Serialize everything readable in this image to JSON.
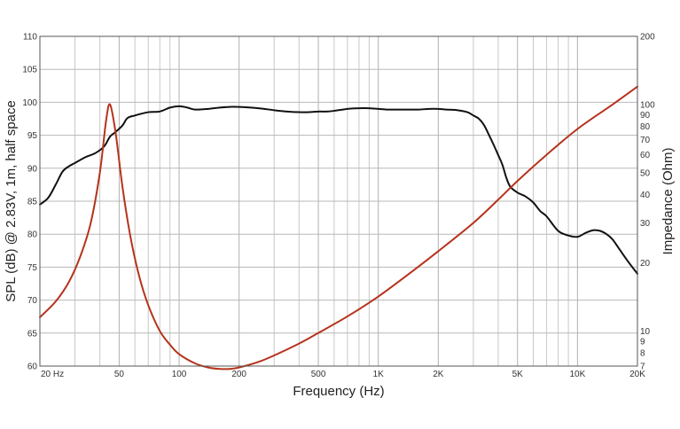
{
  "chart_data": {
    "type": "line",
    "xlabel": "Frequency (Hz)",
    "ylabel_left": "SPL (dB) @ 2.83V, 1m, half space",
    "ylabel_right": "Impedance (Ohm)",
    "x_scale": "log",
    "xlim": [
      20,
      20000
    ],
    "ylim_left": [
      60,
      110
    ],
    "ylim_right": [
      7,
      200
    ],
    "y_right_scale": "log",
    "grid": true,
    "x_ticks": [
      {
        "value": 20,
        "label": "20 Hz"
      },
      {
        "value": 50,
        "label": "50"
      },
      {
        "value": 100,
        "label": "100"
      },
      {
        "value": 200,
        "label": "200"
      },
      {
        "value": 500,
        "label": "500"
      },
      {
        "value": 1000,
        "label": "1K"
      },
      {
        "value": 2000,
        "label": "2K"
      },
      {
        "value": 5000,
        "label": "5K"
      },
      {
        "value": 10000,
        "label": "10K"
      },
      {
        "value": 20000,
        "label": "20K"
      }
    ],
    "y_left_ticks": [
      "60",
      "65",
      "70",
      "75",
      "80",
      "85",
      "90",
      "95",
      "100",
      "105",
      "110"
    ],
    "y_right_ticks": [
      {
        "value": 7,
        "label": "7"
      },
      {
        "value": 8,
        "label": "8"
      },
      {
        "value": 9,
        "label": "9"
      },
      {
        "value": 10,
        "label": "10"
      },
      {
        "value": 20,
        "label": "20"
      },
      {
        "value": 30,
        "label": "30"
      },
      {
        "value": 40,
        "label": "40"
      },
      {
        "value": 50,
        "label": "50"
      },
      {
        "value": 60,
        "label": "60"
      },
      {
        "value": 70,
        "label": "70"
      },
      {
        "value": 80,
        "label": "80"
      },
      {
        "value": 90,
        "label": "90"
      },
      {
        "value": 100,
        "label": "100"
      },
      {
        "value": 200,
        "label": "200"
      }
    ],
    "series": [
      {
        "axis": "left",
        "color": "#111111",
        "x": [
          20,
          22,
          24,
          26,
          28,
          30,
          34,
          38,
          42,
          45,
          48,
          52,
          55,
          60,
          70,
          80,
          90,
          100,
          110,
          120,
          140,
          160,
          180,
          200,
          250,
          300,
          350,
          400,
          450,
          500,
          550,
          600,
          700,
          800,
          900,
          1000,
          1100,
          1200,
          1400,
          1600,
          1800,
          2000,
          2200,
          2500,
          2800,
          3000,
          3200,
          3400,
          3600,
          3800,
          4000,
          4200,
          4400,
          4600,
          5000,
          5500,
          6000,
          6500,
          7000,
          8000,
          9000,
          10000,
          11000,
          12000,
          13000,
          14000,
          15000,
          16000,
          18000,
          20000
        ],
        "y": [
          84.5,
          85.5,
          87.5,
          89.5,
          90.3,
          90.8,
          91.7,
          92.3,
          93.3,
          94.8,
          95.5,
          96.5,
          97.6,
          98.0,
          98.5,
          98.6,
          99.2,
          99.4,
          99.2,
          98.9,
          99.0,
          99.2,
          99.3,
          99.3,
          99.1,
          98.8,
          98.6,
          98.5,
          98.5,
          98.6,
          98.6,
          98.7,
          99.0,
          99.1,
          99.1,
          99.0,
          98.9,
          98.9,
          98.9,
          98.9,
          99.0,
          99.0,
          98.9,
          98.8,
          98.5,
          98.0,
          97.5,
          96.5,
          95.0,
          93.5,
          92.0,
          90.5,
          88.5,
          87.2,
          86.3,
          85.7,
          84.8,
          83.5,
          82.7,
          80.5,
          79.8,
          79.6,
          80.2,
          80.6,
          80.5,
          80.0,
          79.2,
          78.0,
          75.8,
          74.0
        ]
      },
      {
        "axis": "right",
        "color": "#b5331c",
        "x": [
          20,
          24,
          28,
          32,
          36,
          40,
          43,
          45,
          48,
          52,
          57,
          63,
          70,
          80,
          90,
          100,
          120,
          140,
          160,
          180,
          200,
          250,
          300,
          400,
          500,
          700,
          1000,
          1500,
          2000,
          3000,
          4000,
          5000,
          7000,
          10000,
          15000,
          20000
        ],
        "y": [
          11.5,
          13.5,
          16.5,
          21.5,
          30.0,
          50.0,
          85.0,
          100.0,
          75.0,
          43.0,
          26.0,
          17.5,
          13.0,
          10.0,
          8.7,
          7.9,
          7.2,
          6.9,
          6.8,
          6.8,
          6.9,
          7.3,
          7.8,
          8.8,
          9.8,
          11.6,
          14.2,
          18.5,
          22.5,
          30.0,
          38.0,
          46.0,
          60.0,
          78.0,
          100.0,
          120.0
        ]
      }
    ]
  }
}
